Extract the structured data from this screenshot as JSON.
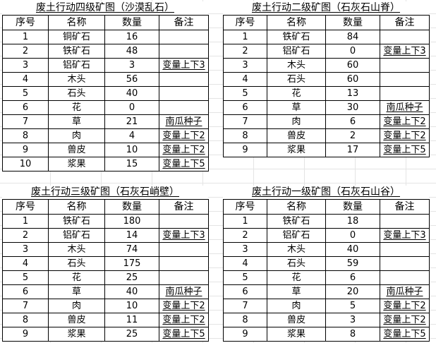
{
  "tables": [
    {
      "title": "废土行动四级矿图（沙漠乱石）",
      "headers": [
        "序号",
        "名称",
        "数量",
        "备注"
      ],
      "rows": [
        [
          "1",
          "铜矿石",
          "16",
          ""
        ],
        [
          "2",
          "铁矿石",
          "48",
          ""
        ],
        [
          "3",
          "铝矿石",
          "3",
          "变量上下3"
        ],
        [
          "4",
          "木头",
          "56",
          ""
        ],
        [
          "5",
          "石头",
          "40",
          ""
        ],
        [
          "6",
          "花",
          "0",
          ""
        ],
        [
          "7",
          "草",
          "21",
          "南瓜种子"
        ],
        [
          "8",
          "肉",
          "4",
          "变量上下2"
        ],
        [
          "9",
          "兽皮",
          "10",
          "变量上下2"
        ],
        [
          "10",
          "浆果",
          "15",
          "变量上下5"
        ]
      ]
    },
    {
      "title": "废土行动二级矿图（石灰石山脊）",
      "headers": [
        "序号",
        "名称",
        "数量",
        "备注"
      ],
      "rows": [
        [
          "1",
          "铁矿石",
          "84",
          ""
        ],
        [
          "2",
          "铝矿石",
          "0",
          "变量上下3"
        ],
        [
          "3",
          "木头",
          "60",
          ""
        ],
        [
          "4",
          "石头",
          "60",
          ""
        ],
        [
          "5",
          "花",
          "13",
          ""
        ],
        [
          "6",
          "草",
          "30",
          "南瓜种子"
        ],
        [
          "7",
          "肉",
          "6",
          "变量上下2"
        ],
        [
          "8",
          "兽皮",
          "2",
          "变量上下2"
        ],
        [
          "9",
          "浆果",
          "17",
          "变量上下5"
        ]
      ]
    },
    {
      "title": "废土行动三级矿图（石灰石峭壁）",
      "headers": [
        "序号",
        "名称",
        "数量",
        "备注"
      ],
      "rows": [
        [
          "1",
          "铁矿石",
          "180",
          ""
        ],
        [
          "2",
          "铝矿石",
          "14",
          "变量上下3"
        ],
        [
          "3",
          "木头",
          "74",
          ""
        ],
        [
          "4",
          "石头",
          "175",
          ""
        ],
        [
          "5",
          "花",
          "25",
          ""
        ],
        [
          "6",
          "草",
          "40",
          "南瓜种子"
        ],
        [
          "7",
          "肉",
          "10",
          "变量上下2"
        ],
        [
          "8",
          "兽皮",
          "11",
          "变量上下2"
        ],
        [
          "9",
          "浆果",
          "25",
          "变量上下5"
        ]
      ]
    },
    {
      "title": "废土行动一级矿图（石灰石山谷）",
      "headers": [
        "序号",
        "名称",
        "数量",
        "备注"
      ],
      "rows": [
        [
          "1",
          "铁矿石",
          "18",
          ""
        ],
        [
          "2",
          "铝矿石",
          "0",
          "变量上下3"
        ],
        [
          "3",
          "木头",
          "40",
          ""
        ],
        [
          "4",
          "石头",
          "59",
          ""
        ],
        [
          "5",
          "花",
          "6",
          ""
        ],
        [
          "6",
          "草",
          "20",
          "南瓜种子"
        ],
        [
          "7",
          "肉",
          "5",
          "变量上下2"
        ],
        [
          "8",
          "兽皮",
          "3",
          "变量上下2"
        ],
        [
          "9",
          "浆果",
          "8",
          "变量上下5"
        ]
      ]
    }
  ]
}
